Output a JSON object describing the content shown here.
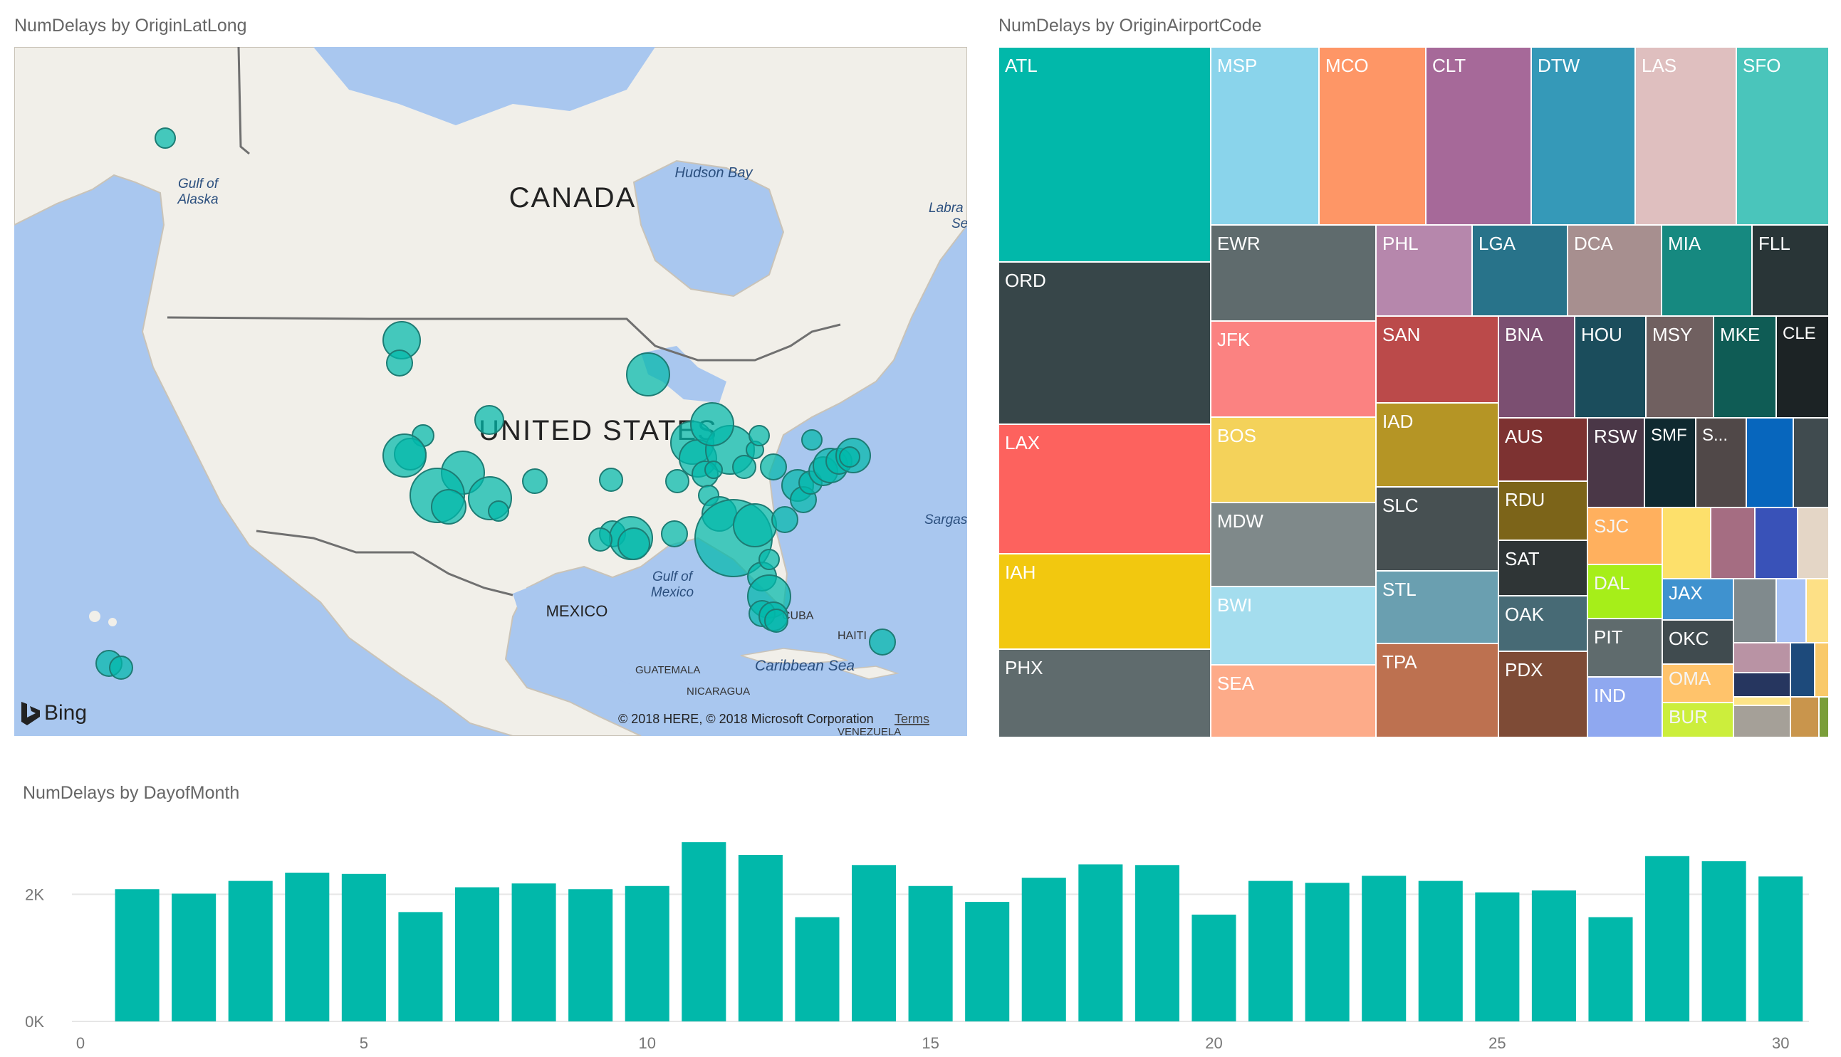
{
  "map_visual": {
    "title": "NumDelays by OriginLatLong",
    "labels": {
      "canada": "CANADA",
      "united_states": "UNITED STATES",
      "mexico": "MEXICO",
      "hudson_bay": "Hudson Bay",
      "gulf_of_alaska_1": "Gulf of",
      "gulf_of_alaska_2": "Alaska",
      "gulf_of_mexico_1": "Gulf of",
      "gulf_of_mexico_2": "Mexico",
      "labrador_1": "Labra",
      "labrador_2": "Se",
      "sargasso": "Sargas",
      "cuba": "CUBA",
      "haiti": "HAITI",
      "caribbean_sea": "Caribbean Sea",
      "guatemala": "GUATEMALA",
      "nicaragua": "NICARAGUA",
      "venezuela": "VENEZUELA"
    },
    "bing_label": "Bing",
    "copyright": "© 2018 HERE, © 2018 Microsoft Corporation",
    "terms_link": "Terms",
    "bubble_color": "#01b8aa"
  },
  "treemap": {
    "title": "NumDelays by OriginAirportCode",
    "label_colors": {
      "light": "#ffffff",
      "dark": "#252423"
    }
  },
  "chart_data": [
    {
      "type": "treemap",
      "title": "NumDelays by OriginAirportCode",
      "items": [
        {
          "label": "ATL",
          "color": "#01b8aa"
        },
        {
          "label": "ORD",
          "color": "#374649"
        },
        {
          "label": "LAX",
          "color": "#fd625e"
        },
        {
          "label": "IAH",
          "color": "#f2c80f"
        },
        {
          "label": "PHX",
          "color": "#5f6b6d"
        },
        {
          "label": "MSP",
          "color": "#8ad4eb"
        },
        {
          "label": "MCO",
          "color": "#fe9666"
        },
        {
          "label": "CLT",
          "color": "#a66999"
        },
        {
          "label": "DTW",
          "color": "#3599b8"
        },
        {
          "label": "LAS",
          "color": "#dfbfbf"
        },
        {
          "label": "SFO",
          "color": "#4ac5bb"
        },
        {
          "label": "EWR",
          "color": "#5f6b6d"
        },
        {
          "label": "JFK",
          "color": "#fb8281"
        },
        {
          "label": "BOS",
          "color": "#f4d25a"
        },
        {
          "label": "MDW",
          "color": "#7f898a"
        },
        {
          "label": "BWI",
          "color": "#a4ddee"
        },
        {
          "label": "SEA",
          "color": "#fdab89"
        },
        {
          "label": "PHL",
          "color": "#b687ac"
        },
        {
          "label": "LGA",
          "color": "#28738a"
        },
        {
          "label": "DCA",
          "color": "#a78f8f"
        },
        {
          "label": "MIA",
          "color": "#168980"
        },
        {
          "label": "FLL",
          "color": "#293537"
        },
        {
          "label": "SAN",
          "color": "#bb4a4a"
        },
        {
          "label": "IAD",
          "color": "#b59525"
        },
        {
          "label": "SLC",
          "color": "#475052"
        },
        {
          "label": "STL",
          "color": "#6a9fb0"
        },
        {
          "label": "TPA",
          "color": "#bd7150"
        },
        {
          "label": "BNA",
          "color": "#7b4f71"
        },
        {
          "label": "HOU",
          "color": "#1b4d5c"
        },
        {
          "label": "MSY",
          "color": "#706060"
        },
        {
          "label": "MKE",
          "color": "#0f5c55"
        },
        {
          "label": "CLE",
          "color": "#1c2325"
        },
        {
          "label": "AUS",
          "color": "#7d3231"
        },
        {
          "label": "RDU",
          "color": "#7c6419"
        },
        {
          "label": "SAT",
          "color": "#2f3536"
        },
        {
          "label": "OAK",
          "color": "#476a75"
        },
        {
          "label": "PDX",
          "color": "#7e4b36"
        },
        {
          "label": "RSW",
          "color": "#4a3747"
        },
        {
          "label": "SMF",
          "color": "#0f2930"
        },
        {
          "label": "S...",
          "color": "#504848"
        },
        {
          "label": "",
          "color": "#0766bd"
        },
        {
          "label": "",
          "color": "#404b4f"
        },
        {
          "label": "SJC",
          "color": "#ffb05e"
        },
        {
          "label": "DAL",
          "color": "#a6ee19"
        },
        {
          "label": "PIT",
          "color": "#5f6b6d"
        },
        {
          "label": "IND",
          "color": "#8fa8f0"
        },
        {
          "label": "",
          "color": "#fde06b"
        },
        {
          "label": "",
          "color": "#a56d82"
        },
        {
          "label": "",
          "color": "#3952b8"
        },
        {
          "label": "",
          "color": "#e4d6c6"
        },
        {
          "label": "JAX",
          "color": "#3f92cf"
        },
        {
          "label": "OKC",
          "color": "#404b4f"
        },
        {
          "label": "OMA",
          "color": "#ffc36b"
        },
        {
          "label": "BUR",
          "color": "#ccee3c"
        },
        {
          "label": "",
          "color": "#808a8d"
        },
        {
          "label": "",
          "color": "#a9c3f5"
        },
        {
          "label": "",
          "color": "#fde086"
        },
        {
          "label": "",
          "color": "#b993a4"
        },
        {
          "label": "",
          "color": "#1d4a7b"
        },
        {
          "label": "",
          "color": "#f9c969"
        },
        {
          "label": "",
          "color": "#26365f"
        },
        {
          "label": "",
          "color": "#fde488"
        },
        {
          "label": "",
          "color": "#a5a098"
        },
        {
          "label": "",
          "color": "#c9954c"
        },
        {
          "label": "",
          "color": "#7a9e3a"
        }
      ]
    },
    {
      "type": "bar",
      "title": "NumDelays by DayofMonth",
      "color": "#01b8aa",
      "categories": [
        1,
        2,
        3,
        4,
        5,
        6,
        7,
        8,
        9,
        10,
        11,
        12,
        13,
        14,
        15,
        16,
        17,
        18,
        19,
        20,
        21,
        22,
        23,
        24,
        25,
        26,
        27,
        28,
        29,
        30
      ],
      "values": [
        2080,
        2010,
        2210,
        2340,
        2320,
        1720,
        2110,
        2170,
        2080,
        2130,
        2820,
        2620,
        1640,
        2460,
        2130,
        1880,
        2260,
        2470,
        2460,
        1680,
        2210,
        2180,
        2290,
        2210,
        2030,
        2060,
        1640,
        2600,
        2520,
        2280
      ],
      "xlim": [
        0,
        30.5
      ],
      "xticks": [
        0,
        5,
        10,
        15,
        20,
        25,
        30
      ],
      "ylim": [
        0,
        2900
      ],
      "yticks": [
        {
          "value": 0,
          "label": "0K"
        },
        {
          "value": 2000,
          "label": "2K"
        }
      ],
      "grid": true
    }
  ]
}
